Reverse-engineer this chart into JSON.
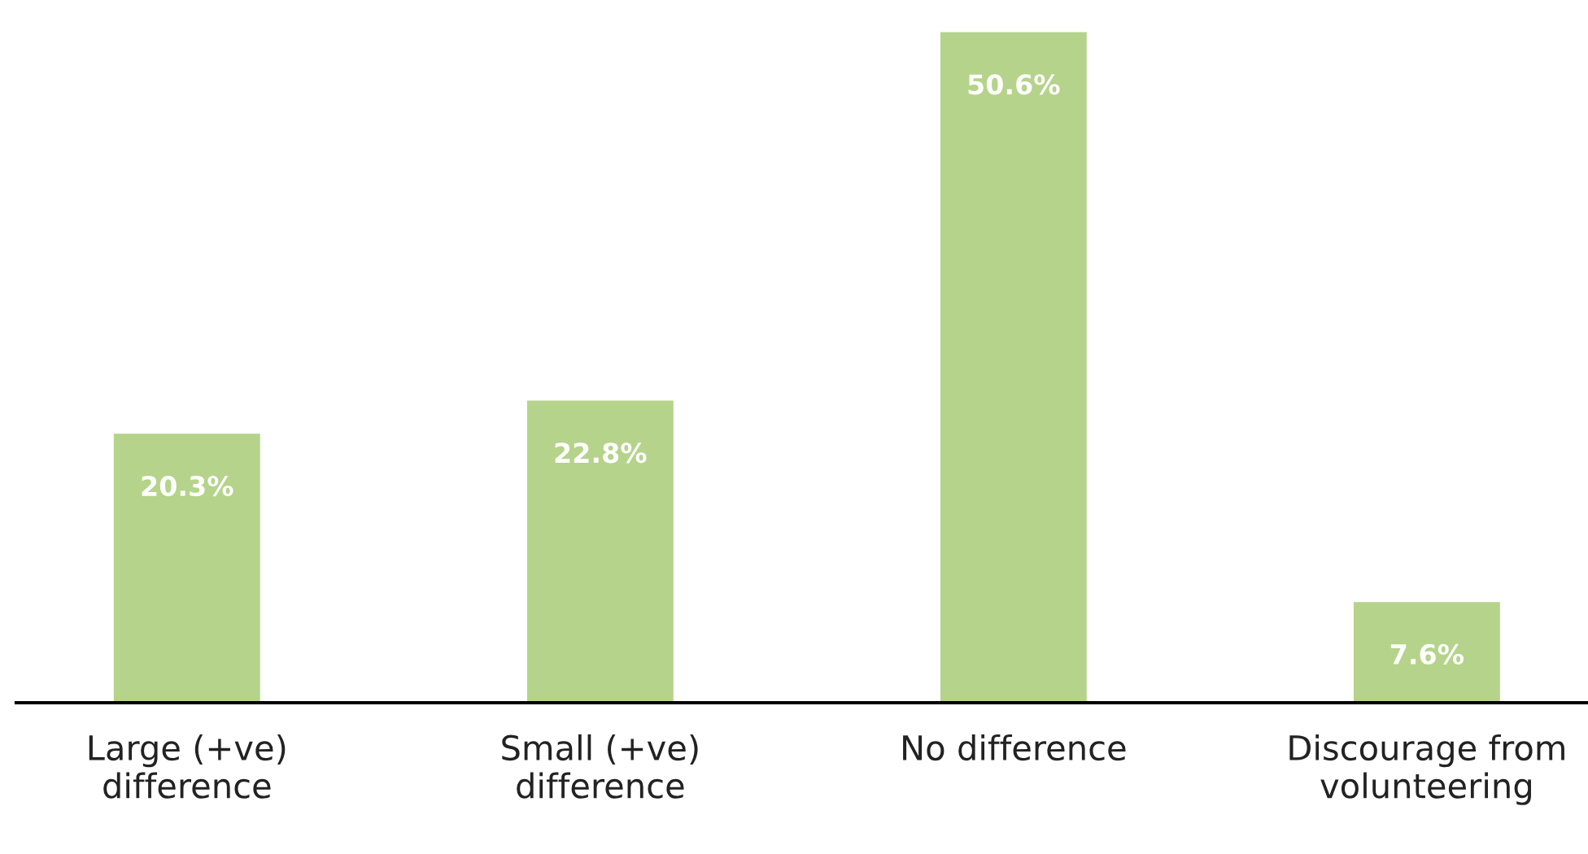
{
  "chart_data": {
    "type": "bar",
    "categories": [
      "Large (+ve)\ndifference",
      "Small (+ve)\ndifference",
      "No difference",
      "Discourage from\nvolunteering"
    ],
    "values": [
      20.3,
      22.8,
      50.6,
      7.6
    ],
    "value_labels": [
      "20.3%",
      "22.8%",
      "50.6%",
      "7.6%"
    ],
    "color": "#b5d38a",
    "grid": false,
    "legend": false
  }
}
